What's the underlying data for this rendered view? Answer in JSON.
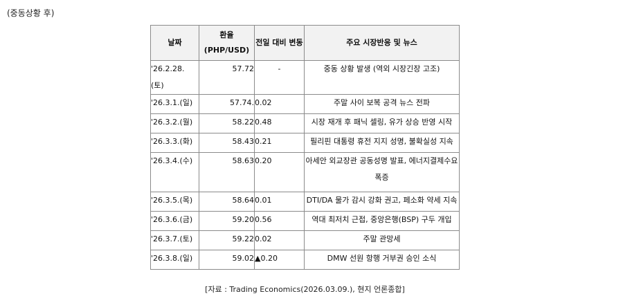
{
  "caption_top": "(중동상황 후)",
  "table": {
    "headers": {
      "date": "날짜",
      "rate_line1": "환율",
      "rate_line2": "(PHP/USD)",
      "change": "전일 대비 변동",
      "news": "주요 시장반응 및 뉴스"
    },
    "rows": [
      {
        "date_line1": "'26.2.28.",
        "date_line2": "(토)",
        "rate": "57.72",
        "change": "-",
        "news": "중동 상황 발생 (역외 시장긴장 고조)"
      },
      {
        "date_line1": "'26.3.1.(일)",
        "rate": "57.74.",
        "change": "0.02",
        "news": "주말 사이 보복 공격 뉴스 전파"
      },
      {
        "date_line1": "'26.3.2.(월)",
        "rate": "58.22",
        "change": "0.48",
        "news": "시장 재개 후 패닉 셀링, 유가 상승 반영 시작"
      },
      {
        "date_line1": "'26.3.3.(화)",
        "rate": "58.43",
        "change": "0.21",
        "news": "필리핀 대통령 휴전 지지 성명, 불확실성 지속"
      },
      {
        "date_line1": "'26.3.4.(수)",
        "rate": "58.63",
        "change": "0.20",
        "news_line1": "아세안 외교장관 공동성명 발표, 에너지결제수요",
        "news_line2": "폭증"
      },
      {
        "date_line1": "'26.3.5.(목)",
        "rate": "58.64",
        "change": "0.01",
        "news": "DTI/DA 물가 감시 강화 권고, 페소화 약세 지속"
      },
      {
        "date_line1": "'26.3.6.(금)",
        "rate": "59.20",
        "change": "0.56",
        "news": "역대 최저치 근접, 중앙은행(BSP) 구두 개입"
      },
      {
        "date_line1": "'26.3.7.(토)",
        "rate": "59.22",
        "change": "0.02",
        "news": "주말 관망세"
      },
      {
        "date_line1": "'26.3.8.(일)",
        "rate": "59.02",
        "change": "▲0.20",
        "news": "DMW 선원 항행 거부권 승인 소식"
      }
    ]
  },
  "caption_bottom": "[자료 : Trading Economics(2026.03.09.), 현지 언론종합]"
}
